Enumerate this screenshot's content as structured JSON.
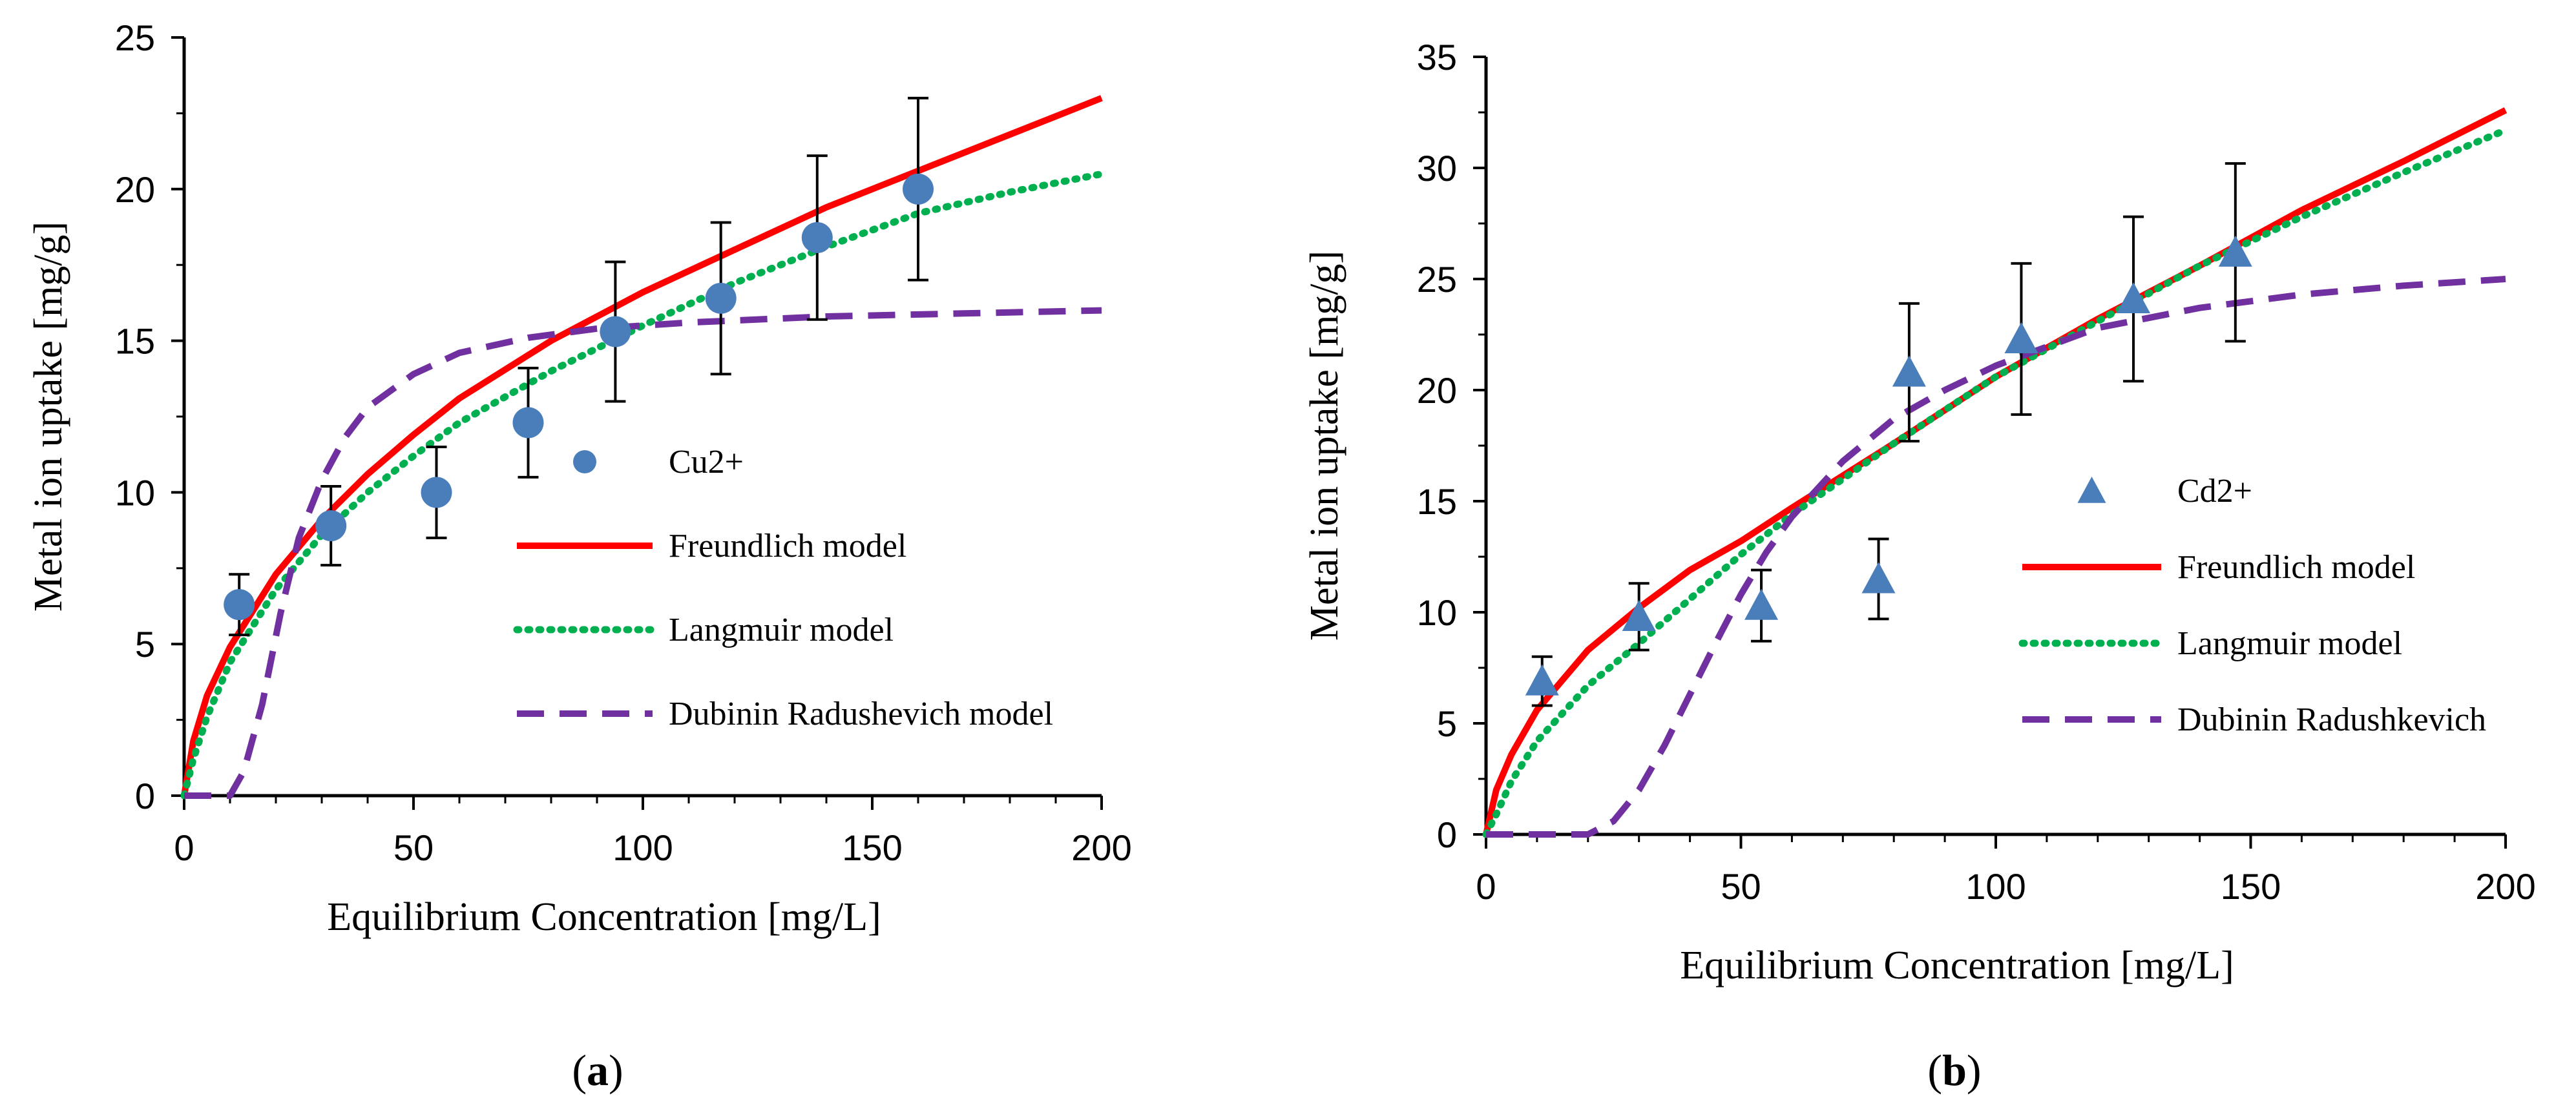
{
  "chart_data": [
    {
      "panel": "a",
      "type": "scatter",
      "xlabel": "Equilibrium Concentration [mg/L]",
      "ylabel": "Metal ion uptake [mg/g]",
      "xlim": [
        0,
        200
      ],
      "ylim": [
        0,
        25
      ],
      "xticks": [
        0,
        50,
        100,
        150,
        200
      ],
      "yticks": [
        0,
        5,
        10,
        15,
        20,
        25
      ],
      "scatter": {
        "name": "Cu2+",
        "color": "#4a7ebb",
        "marker": "circle",
        "x": [
          12,
          32,
          55,
          75,
          94,
          117,
          138,
          160
        ],
        "y": [
          6.3,
          8.9,
          10.0,
          12.3,
          15.3,
          16.4,
          18.4,
          20.0
        ],
        "error": [
          1.0,
          1.3,
          1.5,
          1.8,
          2.3,
          2.5,
          2.7,
          3.0
        ]
      },
      "lines": [
        {
          "name": "Freundlich model",
          "color": "#ff0000",
          "style": "solid",
          "x": [
            0,
            2,
            5,
            10,
            20,
            30,
            40,
            50,
            60,
            80,
            100,
            120,
            140,
            160,
            180,
            200
          ],
          "y": [
            0,
            1.8,
            3.3,
            4.9,
            7.3,
            9.1,
            10.6,
            11.9,
            13.1,
            15.0,
            16.6,
            18.0,
            19.4,
            20.6,
            21.8,
            23.0
          ]
        },
        {
          "name": "Langmuir model",
          "color": "#00b050",
          "style": "dotted",
          "x": [
            0,
            2,
            5,
            10,
            20,
            30,
            40,
            50,
            60,
            80,
            100,
            120,
            140,
            160,
            180,
            200
          ],
          "y": [
            0,
            1.2,
            2.6,
            4.4,
            6.8,
            8.6,
            10.0,
            11.2,
            12.3,
            14.0,
            15.5,
            16.9,
            18.1,
            19.2,
            19.9,
            20.5
          ]
        },
        {
          "name": "Dubinin Radushevich model",
          "color": "#7030a0",
          "style": "dashed",
          "x": [
            0,
            10,
            13,
            17,
            21,
            25,
            30,
            35,
            40,
            50,
            60,
            75,
            90,
            110,
            140,
            170,
            200
          ],
          "y": [
            0,
            0,
            0.8,
            3.0,
            6.0,
            8.5,
            10.4,
            11.8,
            12.8,
            13.9,
            14.6,
            15.1,
            15.4,
            15.6,
            15.8,
            15.9,
            16.0
          ]
        }
      ],
      "panel_label": "(a)"
    },
    {
      "panel": "b",
      "type": "scatter",
      "xlabel": "Equilibrium Concentration [mg/L]",
      "ylabel": "Metal ion uptake [mg/g]",
      "xlim": [
        0,
        200
      ],
      "ylim": [
        0,
        35
      ],
      "xticks": [
        0,
        50,
        100,
        150,
        200
      ],
      "yticks": [
        0,
        5,
        10,
        15,
        20,
        25,
        30,
        35
      ],
      "scatter": {
        "name": "Cd2+",
        "color": "#4a7ebb",
        "marker": "triangle",
        "x": [
          11,
          30,
          54,
          77,
          83,
          105,
          127,
          147
        ],
        "y": [
          6.9,
          9.8,
          10.3,
          11.5,
          20.8,
          22.3,
          24.1,
          26.2
        ],
        "error": [
          1.1,
          1.5,
          1.6,
          1.8,
          3.1,
          3.4,
          3.7,
          4.0
        ]
      },
      "lines": [
        {
          "name": "Freundlich model",
          "color": "#ff0000",
          "style": "solid",
          "x": [
            0,
            2,
            5,
            10,
            20,
            30,
            40,
            50,
            60,
            80,
            100,
            120,
            140,
            160,
            180,
            200
          ],
          "y": [
            0,
            2.0,
            3.6,
            5.6,
            8.3,
            10.2,
            11.9,
            13.2,
            14.7,
            17.6,
            20.6,
            23.2,
            25.6,
            28.1,
            30.3,
            32.6
          ]
        },
        {
          "name": "Langmuir model",
          "color": "#00b050",
          "style": "dotted",
          "x": [
            0,
            2,
            5,
            10,
            20,
            30,
            40,
            50,
            60,
            80,
            100,
            120,
            140,
            160,
            180,
            200
          ],
          "y": [
            0,
            0.9,
            2.4,
            4.2,
            6.7,
            8.6,
            10.6,
            12.6,
            14.4,
            17.6,
            20.6,
            23.1,
            25.6,
            27.8,
            29.8,
            31.7
          ]
        },
        {
          "name": "Dubinin Radushkevich",
          "color": "#7030a0",
          "style": "dashed",
          "x": [
            0,
            20,
            25,
            30,
            35,
            40,
            45,
            50,
            55,
            60,
            70,
            80,
            90,
            100,
            120,
            140,
            160,
            180,
            200
          ],
          "y": [
            0,
            0,
            0.6,
            2.0,
            4.0,
            6.3,
            8.6,
            10.8,
            12.7,
            14.3,
            16.8,
            18.7,
            20.0,
            21.1,
            22.8,
            23.7,
            24.3,
            24.7,
            25.0
          ]
        }
      ],
      "panel_label": "(b)"
    }
  ]
}
